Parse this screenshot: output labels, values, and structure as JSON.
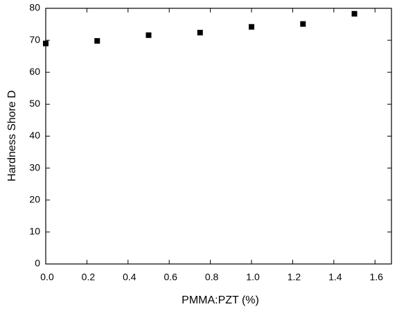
{
  "chart_data": {
    "type": "scatter",
    "x_label": "PMMA:PZT (%)",
    "y_label": "Hardness Shore D",
    "series": [
      {
        "color": "#000000",
        "x": [
          0,
          0.25,
          0.5,
          0.75,
          1.0,
          1.25,
          1.5
        ],
        "values": [
          69.0,
          69.8,
          71.6,
          72.4,
          74.2,
          75.1,
          78.3
        ]
      }
    ],
    "xlim": [
      0,
      1.68
    ],
    "ylim": [
      0,
      80
    ],
    "xticks": [
      {
        "value": 0,
        "label": "0.0"
      },
      0.2,
      0.4,
      0.6,
      0.8,
      {
        "value": 1,
        "label": "1.0"
      },
      1.2,
      1.4,
      1.6
    ],
    "yticks": [
      0,
      10,
      20,
      30,
      40,
      50,
      60,
      70,
      80
    ],
    "grid": false
  }
}
